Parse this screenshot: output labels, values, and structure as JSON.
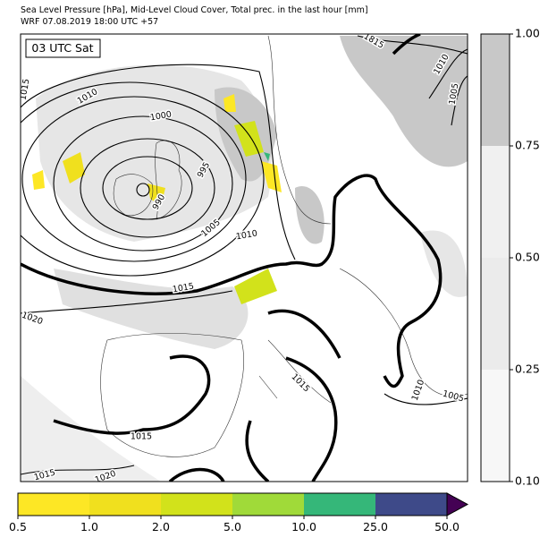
{
  "header": {
    "line1": "Sea Level Pressure [hPa], Mid-Level Cloud Cover, Total prec. in the last hour [mm]",
    "line2": "WRF 07.08.2019 18:00 UTC +57"
  },
  "map": {
    "time_label": "03 UTC Sat",
    "isobar_labels": [
      "1015",
      "1010",
      "1000",
      "995",
      "990",
      "1005",
      "1010",
      "1015",
      "1020",
      "1815",
      "1010",
      "1005",
      "1015",
      "1010",
      "1005",
      "1015",
      "1015",
      "1020"
    ]
  },
  "cloud_colorbar": {
    "ticks": [
      "0.10",
      "0.25",
      "0.50",
      "0.75",
      "1.00"
    ]
  },
  "precip_colorbar": {
    "ticks": [
      "0.5",
      "1.0",
      "2.0",
      "5.0",
      "10.0",
      "25.0",
      "50.0"
    ]
  }
}
